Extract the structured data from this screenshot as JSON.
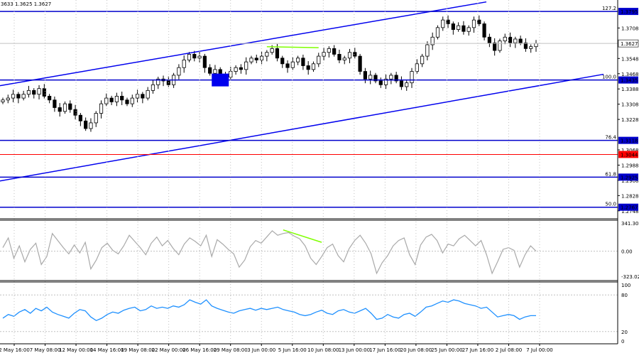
{
  "header": {
    "ohlc_text": "3633 1.3625 1.3627"
  },
  "colors": {
    "background": "#ffffff",
    "candles": "#000000",
    "channel": "#0000ee",
    "fib_lines": "#0000cc",
    "red_line": "#ff0000",
    "divergence": "#7fff00",
    "cci": "#a9a9a9",
    "rsi": "#1e90ff",
    "current_price": "#000000",
    "grid": "#c0c0c0"
  },
  "chart_data": [
    {
      "type": "candlestick",
      "title": "",
      "x_axis": {
        "tick_labels": [
          "2 May 16:00",
          "7 May 08:00",
          "12 May 00:00",
          "14 May 16:00",
          "19 May 08:00",
          "22 May 00:00",
          "26 May 16:00",
          "29 May 08:00",
          "3 Jun 00:00",
          "5 Jun 16:00",
          "10 Jun 08:00",
          "13 Jun 00:00",
          "17 Jun 16:00",
          "20 Jun 08:00",
          "25 Jun 00:00",
          "27 Jun 16:00",
          "2 Jul 08:00",
          "7 Jul 00:00"
        ]
      },
      "y_axis": {
        "range": [
          1.271,
          1.3855
        ],
        "tick_labels": [
          "1.3708",
          "1.3548",
          "1.3468",
          "1.3388",
          "1.3308",
          "1.3228",
          "1.3068",
          "1.2988",
          "1.2908",
          "1.2828",
          "1.2748"
        ]
      },
      "price_path": [
        1.333,
        1.334,
        1.336,
        1.334,
        1.336,
        1.338,
        1.336,
        1.339,
        1.335,
        1.333,
        1.329,
        1.327,
        1.331,
        1.328,
        1.325,
        1.322,
        1.318,
        1.321,
        1.326,
        1.331,
        1.334,
        1.332,
        1.335,
        1.333,
        1.331,
        1.334,
        1.336,
        1.334,
        1.338,
        1.341,
        1.344,
        1.343,
        1.341,
        1.346,
        1.35,
        1.354,
        1.357,
        1.355,
        1.356,
        1.35,
        1.347,
        1.349,
        1.346,
        1.345,
        1.348,
        1.35,
        1.349,
        1.353,
        1.355,
        1.354,
        1.356,
        1.358,
        1.36,
        1.355,
        1.352,
        1.35,
        1.353,
        1.355,
        1.351,
        1.349,
        1.352,
        1.356,
        1.358,
        1.36,
        1.357,
        1.354,
        1.355,
        1.358,
        1.356,
        1.348,
        1.344,
        1.346,
        1.343,
        1.341,
        1.344,
        1.346,
        1.343,
        1.34,
        1.342,
        1.348,
        1.352,
        1.356,
        1.362,
        1.366,
        1.371,
        1.375,
        1.373,
        1.37,
        1.372,
        1.369,
        1.371,
        1.375,
        1.373,
        1.366,
        1.363,
        1.359,
        1.364,
        1.366,
        1.363,
        1.365,
        1.363,
        1.36,
        1.361,
        1.3627
      ],
      "channel_lines": [
        {
          "name": "upper",
          "from": [
            0,
            1.3405
          ],
          "to": [
            685,
            1.3845
          ]
        },
        {
          "name": "lower",
          "from": [
            0,
            1.2905
          ],
          "to": [
            850,
            1.3465
          ]
        }
      ],
      "horizontal_levels": [
        {
          "price": 1.3795,
          "label": "127.2",
          "price_tag": "1.3795",
          "color": "#0000cc"
        },
        {
          "price": 1.3435,
          "label": "100.0",
          "price_tag": "1.3435",
          "color": "#0000cc"
        },
        {
          "price": 1.3118,
          "label": "76.4",
          "price_tag": "1.3118",
          "color": "#0000cc"
        },
        {
          "price": 1.3044,
          "label": "",
          "price_tag": "1.3044",
          "color": "#ff0000"
        },
        {
          "price": 1.2925,
          "label": "61.8",
          "price_tag": "1.2925",
          "color": "#0000cc"
        },
        {
          "price": 1.2767,
          "label": "50.0",
          "price_tag": "1.2767",
          "color": "#0000cc"
        }
      ],
      "current_price": {
        "price": 1.3627,
        "tag": "1.3627"
      },
      "marker_box": {
        "x_index": 42,
        "price": 1.3435
      },
      "divergence_line": {
        "from_index": 51,
        "to_index": 61
      }
    },
    {
      "type": "line",
      "title": "",
      "series": [
        {
          "values": [
            40,
            150,
            -80,
            60,
            -120,
            20,
            90,
            -150,
            -60,
            200,
            120,
            40,
            -30,
            70,
            -20,
            100,
            -200,
            -100,
            40,
            90,
            10,
            -30,
            60,
            180,
            110,
            40,
            -40,
            90,
            160,
            60,
            120,
            30,
            -40,
            80,
            150,
            110,
            60,
            180,
            -60,
            130,
            80,
            20,
            -30,
            -180,
            -100,
            50,
            120,
            90,
            160,
            230,
            180,
            200,
            210,
            170,
            140,
            60,
            -80,
            -150,
            -60,
            40,
            80,
            -50,
            -120,
            30,
            120,
            180,
            90,
            -30,
            -250,
            -130,
            -50,
            60,
            120,
            150,
            -40,
            -150,
            70,
            160,
            190,
            120,
            -20,
            80,
            60,
            140,
            180,
            120,
            60,
            120,
            -40,
            -250,
            -120,
            20,
            40,
            10,
            -180,
            -40,
            60,
            0
          ]
        }
      ],
      "y_axis": {
        "range": [
          -323.021,
          341.3079
        ],
        "tick_labels": [
          "341.3079",
          "0.00",
          "-323.021"
        ]
      }
    },
    {
      "type": "line",
      "title": "",
      "series": [
        {
          "values": [
            42,
            48,
            45,
            52,
            56,
            50,
            58,
            54,
            60,
            52,
            48,
            45,
            42,
            50,
            56,
            54,
            44,
            38,
            42,
            48,
            52,
            50,
            55,
            58,
            60,
            54,
            56,
            62,
            58,
            60,
            58,
            62,
            60,
            64,
            72,
            68,
            65,
            72,
            62,
            58,
            55,
            52,
            50,
            54,
            56,
            58,
            55,
            58,
            56,
            58,
            60,
            56,
            54,
            52,
            48,
            46,
            48,
            52,
            55,
            50,
            48,
            54,
            56,
            52,
            50,
            54,
            58,
            50,
            40,
            42,
            48,
            44,
            42,
            48,
            50,
            45,
            52,
            60,
            62,
            66,
            70,
            68,
            72,
            70,
            66,
            64,
            62,
            58,
            60,
            52,
            44,
            46,
            48,
            46,
            40,
            44,
            46,
            46
          ]
        }
      ],
      "y_axis": {
        "range": [
          0,
          100
        ],
        "tick_labels": [
          "100",
          "80",
          "20",
          "0"
        ]
      }
    }
  ]
}
